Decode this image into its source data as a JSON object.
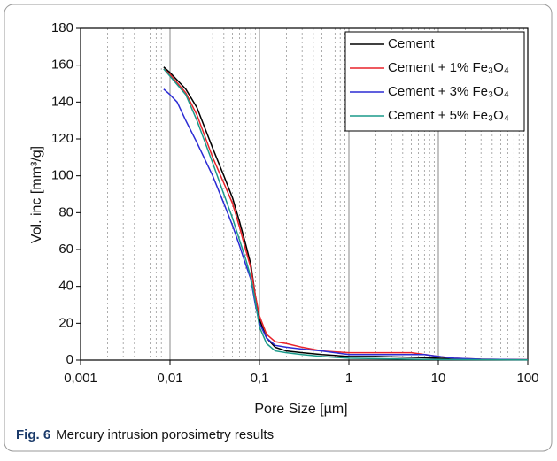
{
  "chart_data": {
    "type": "line",
    "x_label": "Pore Size [µm]",
    "y_label": "Vol. inc [mm³/g]",
    "caption_label": "Fig. 6",
    "caption_text": "Mercury intrusion porosimetry results",
    "x_log": true,
    "grid": true,
    "legend": "upper right",
    "xlim": [
      0.001,
      100
    ],
    "xticks": [
      {
        "value": 0.001,
        "label": "0,001"
      },
      {
        "value": 0.01,
        "label": "0,01"
      },
      {
        "value": 0.1,
        "label": "0,1"
      },
      1,
      10,
      100
    ],
    "x_minor_ticks": [
      0.002,
      0.003,
      0.004,
      0.005,
      0.006,
      0.007,
      0.008,
      0.009,
      0.02,
      0.03,
      0.04,
      0.05,
      0.06,
      0.07,
      0.08,
      0.09,
      0.2,
      0.3,
      0.4,
      0.5,
      0.6,
      0.7,
      0.8,
      0.9,
      2,
      3,
      4,
      5,
      6,
      7,
      8,
      9,
      20,
      30,
      40,
      50,
      60,
      70,
      80,
      90
    ],
    "ylim": [
      0,
      180
    ],
    "yticks": [
      0,
      20,
      40,
      60,
      80,
      100,
      120,
      140,
      160,
      180
    ],
    "series": [
      {
        "name": "Cement",
        "color": "#000000",
        "x": [
          0.0085,
          0.01,
          0.015,
          0.02,
          0.03,
          0.04,
          0.05,
          0.06,
          0.07,
          0.08,
          0.09,
          0.1,
          0.12,
          0.15,
          0.2,
          0.3,
          0.5,
          1,
          2,
          5,
          10,
          20,
          50,
          100
        ],
        "values": [
          159,
          156,
          147,
          137,
          115,
          100,
          88,
          75,
          63,
          52,
          35,
          22,
          12,
          7,
          5,
          4,
          3,
          2,
          2,
          1.5,
          1,
          0.5,
          0.3,
          0.2
        ]
      },
      {
        "name": "Cement + 1% Fe₃O₄",
        "color": "#e8222a",
        "x": [
          0.0085,
          0.01,
          0.015,
          0.02,
          0.03,
          0.04,
          0.05,
          0.06,
          0.07,
          0.08,
          0.09,
          0.1,
          0.12,
          0.15,
          0.2,
          0.3,
          0.5,
          1,
          2,
          5,
          6,
          10,
          15,
          30,
          100
        ],
        "values": [
          158,
          155,
          145,
          133,
          110,
          96,
          85,
          72,
          60,
          50,
          35,
          24,
          14,
          10,
          9,
          7,
          5,
          4,
          4,
          4,
          3.5,
          2,
          1,
          0.5,
          0.2
        ]
      },
      {
        "name": "Cement + 3% Fe₃O₄",
        "color": "#2b2bd4",
        "x": [
          0.0085,
          0.0095,
          0.01,
          0.012,
          0.015,
          0.02,
          0.03,
          0.04,
          0.05,
          0.06,
          0.07,
          0.08,
          0.09,
          0.1,
          0.12,
          0.15,
          0.2,
          0.3,
          0.5,
          1,
          2,
          5,
          7,
          10,
          15,
          30,
          100
        ],
        "values": [
          147,
          145,
          144,
          140,
          130,
          118,
          100,
          85,
          73,
          62,
          52,
          44,
          30,
          20,
          12,
          8,
          7,
          6,
          5,
          3,
          3,
          3,
          3,
          2,
          1,
          0.5,
          0.2
        ]
      },
      {
        "name": "Cement + 5% Fe₃O₄",
        "color": "#1a9a8a",
        "x": [
          0.0085,
          0.01,
          0.015,
          0.02,
          0.03,
          0.04,
          0.05,
          0.06,
          0.07,
          0.08,
          0.09,
          0.1,
          0.12,
          0.15,
          0.2,
          0.3,
          0.5,
          1,
          2,
          5,
          10,
          100
        ],
        "values": [
          158,
          154,
          144,
          130,
          107,
          90,
          77,
          65,
          55,
          45,
          32,
          18,
          9,
          5,
          4,
          3,
          2,
          1,
          0.8,
          0.5,
          0.3,
          0.1
        ]
      }
    ]
  }
}
